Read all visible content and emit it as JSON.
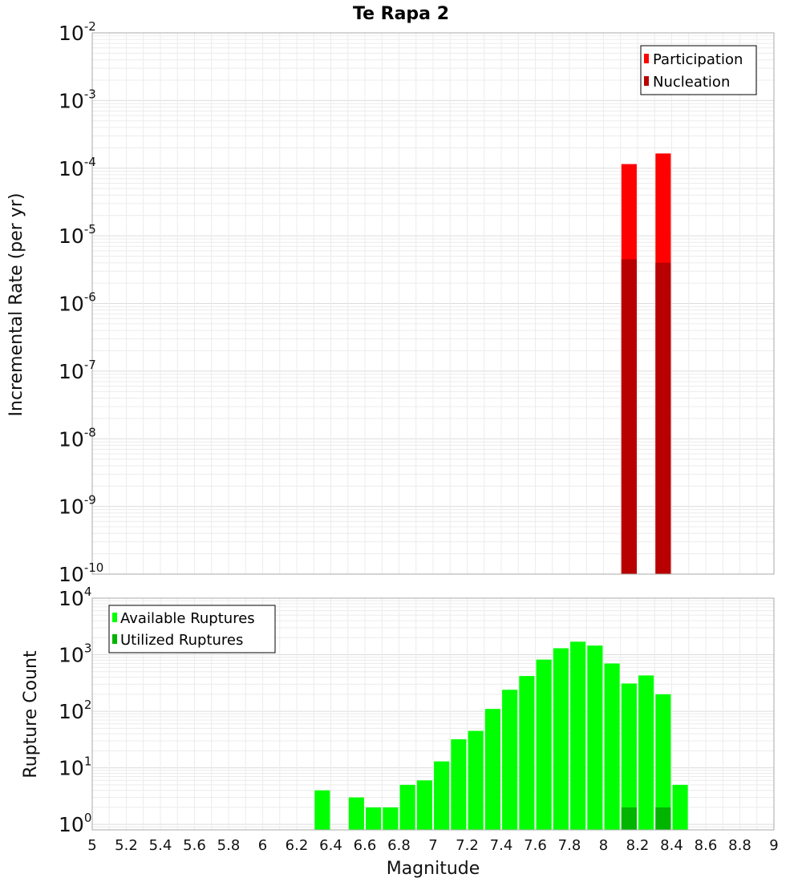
{
  "chart_data": [
    {
      "type": "bar",
      "panel": "top",
      "title": "Te Rapa 2",
      "ylabel": "Incremental Rate (per yr)",
      "xlabel": "",
      "yscale": "log",
      "ylim": [
        1e-10,
        0.01
      ],
      "xlim": [
        5,
        9
      ],
      "y_ticks": [
        {
          "base": "10",
          "exp": "-10",
          "value": 1e-10
        },
        {
          "base": "10",
          "exp": "-9",
          "value": 1e-09
        },
        {
          "base": "10",
          "exp": "-8",
          "value": 1e-08
        },
        {
          "base": "10",
          "exp": "-7",
          "value": 1e-07
        },
        {
          "base": "10",
          "exp": "-6",
          "value": 1e-06
        },
        {
          "base": "10",
          "exp": "-5",
          "value": 1e-05
        },
        {
          "base": "10",
          "exp": "-4",
          "value": 0.0001
        },
        {
          "base": "10",
          "exp": "-3",
          "value": 0.001
        },
        {
          "base": "10",
          "exp": "-2",
          "value": 0.01
        }
      ],
      "legend_position": "top-right",
      "series": [
        {
          "name": "Participation",
          "color": "#ff0000",
          "points": [
            {
              "x": 8.15,
              "y": 0.000115
            },
            {
              "x": 8.35,
              "y": 0.000165
            }
          ]
        },
        {
          "name": "Nucleation",
          "color": "#b80000",
          "points": [
            {
              "x": 8.15,
              "y": 4.5e-06
            },
            {
              "x": 8.35,
              "y": 4e-06
            }
          ]
        }
      ]
    },
    {
      "type": "bar",
      "panel": "bottom",
      "title": "",
      "ylabel": "Rupture Count",
      "xlabel": "Magnitude",
      "yscale": "log",
      "ylim": [
        0.8,
        10000
      ],
      "xlim": [
        5,
        9
      ],
      "x_ticks": [
        "5",
        "5.2",
        "5.4",
        "5.6",
        "5.8",
        "6",
        "6.2",
        "6.4",
        "6.6",
        "6.8",
        "7",
        "7.2",
        "7.4",
        "7.6",
        "7.8",
        "8",
        "8.2",
        "8.4",
        "8.6",
        "8.8",
        "9"
      ],
      "y_ticks": [
        {
          "base": "10",
          "exp": "0",
          "value": 1
        },
        {
          "base": "10",
          "exp": "1",
          "value": 10
        },
        {
          "base": "10",
          "exp": "2",
          "value": 100
        },
        {
          "base": "10",
          "exp": "3",
          "value": 1000
        },
        {
          "base": "10",
          "exp": "4",
          "value": 10000
        }
      ],
      "legend_position": "top-left",
      "series": [
        {
          "name": "Available Ruptures",
          "color": "#00ff00",
          "points": [
            {
              "x": 6.35,
              "y": 4
            },
            {
              "x": 6.55,
              "y": 3
            },
            {
              "x": 6.65,
              "y": 2
            },
            {
              "x": 6.75,
              "y": 2
            },
            {
              "x": 6.85,
              "y": 5
            },
            {
              "x": 6.95,
              "y": 6
            },
            {
              "x": 7.05,
              "y": 13
            },
            {
              "x": 7.15,
              "y": 32
            },
            {
              "x": 7.25,
              "y": 45
            },
            {
              "x": 7.35,
              "y": 110
            },
            {
              "x": 7.45,
              "y": 240
            },
            {
              "x": 7.55,
              "y": 420
            },
            {
              "x": 7.65,
              "y": 820
            },
            {
              "x": 7.75,
              "y": 1300
            },
            {
              "x": 7.85,
              "y": 1700
            },
            {
              "x": 7.95,
              "y": 1450
            },
            {
              "x": 8.05,
              "y": 700
            },
            {
              "x": 8.15,
              "y": 310
            },
            {
              "x": 8.25,
              "y": 430
            },
            {
              "x": 8.35,
              "y": 200
            },
            {
              "x": 8.45,
              "y": 5
            }
          ]
        },
        {
          "name": "Utilized Ruptures",
          "color": "#00b400",
          "points": [
            {
              "x": 8.15,
              "y": 2
            },
            {
              "x": 8.35,
              "y": 2
            }
          ]
        }
      ]
    }
  ]
}
